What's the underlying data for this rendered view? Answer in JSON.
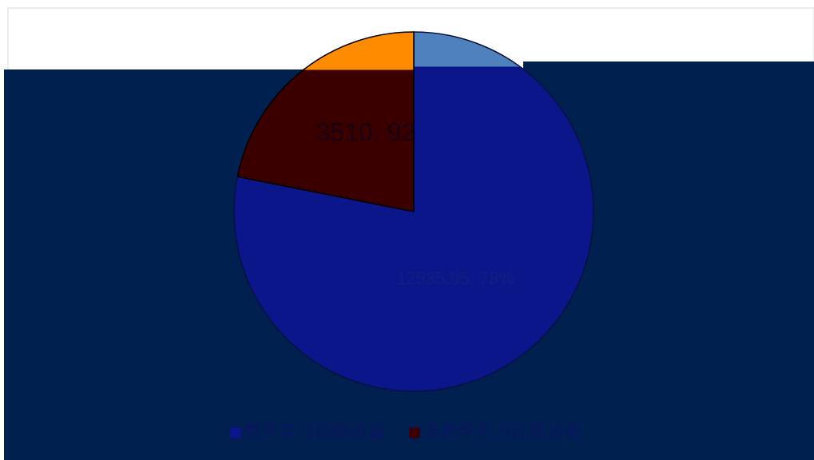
{
  "chart_data": {
    "type": "pie",
    "categories": [
      "教学实习仪器设备",
      "非教学实习仪器设备"
    ],
    "values": [
      12535.95,
      3510.92
    ],
    "value_labels": [
      "12535.95, 78%",
      "3510. 92"
    ],
    "colors": [
      "#0a168a",
      "#3a0000"
    ]
  }
}
